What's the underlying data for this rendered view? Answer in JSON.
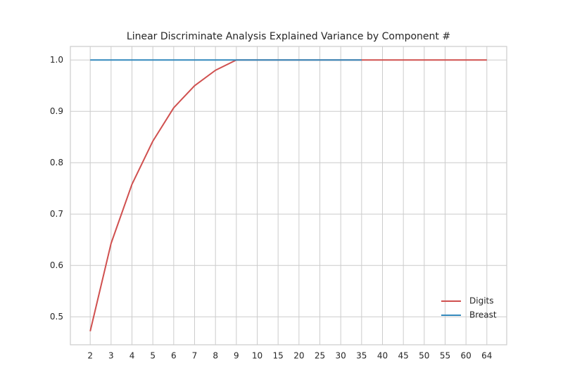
{
  "chart_data": {
    "type": "line",
    "title": "Linear Discriminate Analysis Explained Variance by Component #",
    "categories": [
      "2",
      "3",
      "4",
      "5",
      "6",
      "7",
      "8",
      "9",
      "10",
      "15",
      "20",
      "25",
      "30",
      "35",
      "40",
      "45",
      "50",
      "55",
      "60",
      "64"
    ],
    "series": [
      {
        "name": "Digits",
        "color": "#d0504f",
        "values": [
          0.472,
          0.643,
          0.758,
          0.842,
          0.907,
          0.95,
          0.98,
          1.0,
          1.0,
          1.0,
          1.0,
          1.0,
          1.0,
          1.0,
          1.0,
          1.0,
          1.0,
          1.0,
          1.0,
          1.0
        ]
      },
      {
        "name": "Breast",
        "color": "#348abd",
        "values": [
          1.0,
          1.0,
          1.0,
          1.0,
          1.0,
          1.0,
          1.0,
          1.0,
          1.0,
          1.0,
          1.0,
          1.0,
          1.0,
          1.0,
          null,
          null,
          null,
          null,
          null,
          null
        ]
      }
    ],
    "ylim": [
      0.4456,
      1.0264
    ],
    "yticks": [
      {
        "value": 0.5,
        "label": "0.5"
      },
      {
        "value": 0.6,
        "label": "0.6"
      },
      {
        "value": 0.7,
        "label": "0.7"
      },
      {
        "value": 0.8,
        "label": "0.8"
      },
      {
        "value": 0.9,
        "label": "0.9"
      },
      {
        "value": 1.0,
        "label": "1.0"
      }
    ],
    "grid": true,
    "legend": "lower right"
  }
}
